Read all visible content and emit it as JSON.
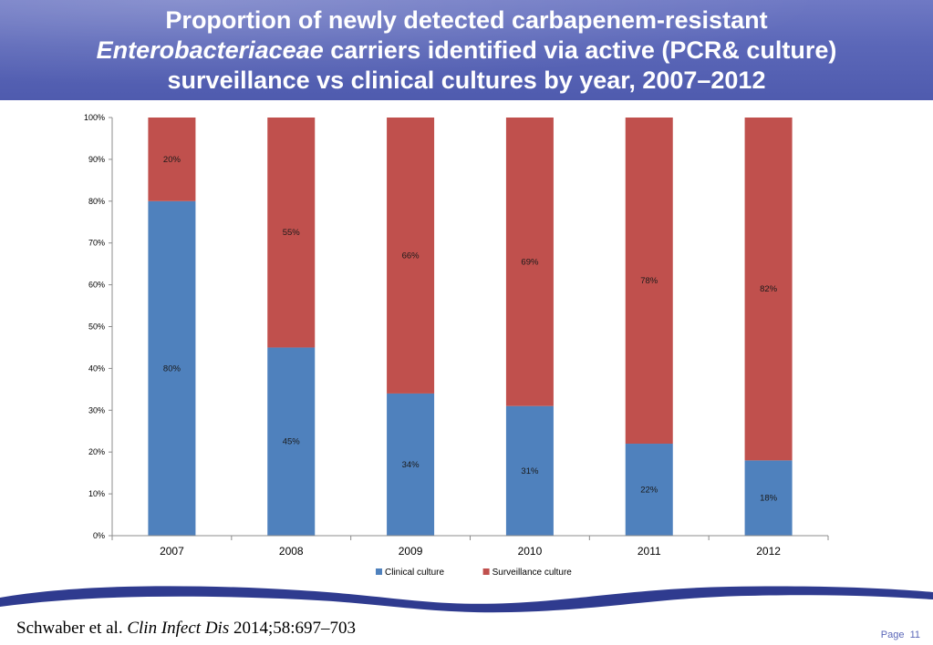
{
  "slide": {
    "title_line1": "Proportion of newly detected carbapenem-resistant",
    "title_line2_italic": "Enterobacteriaceae",
    "title_line2_rest": " carriers identified via active (PCR& culture)",
    "title_line3": "surveillance vs clinical cultures by year, 2007–2012",
    "citation_authors": "Schwaber  et al. ",
    "citation_journal": "Clin Infect Dis",
    "citation_ref": " 2014;58:697–703",
    "page_label": "Page",
    "page_number": "11"
  },
  "colors": {
    "header": "#5b67b8",
    "clinical": "#4f81bd",
    "surveillance": "#c0504d",
    "wave": "#2f3b8f"
  },
  "chart_data": {
    "type": "bar",
    "stacked": true,
    "categories": [
      "2007",
      "2008",
      "2009",
      "2010",
      "2011",
      "2012"
    ],
    "series": [
      {
        "name": "Clinical culture",
        "values": [
          80,
          45,
          34,
          31,
          22,
          18
        ],
        "labels": [
          "80%",
          "45%",
          "34%",
          "31%",
          "22%",
          "18%"
        ],
        "color": "#4f81bd"
      },
      {
        "name": "Surveillance culture",
        "values": [
          20,
          55,
          66,
          69,
          78,
          82
        ],
        "labels": [
          "20%",
          "55%",
          "66%",
          "69%",
          "78%",
          "82%"
        ],
        "color": "#c0504d"
      }
    ],
    "ylim": [
      0,
      100
    ],
    "yticks": [
      "0%",
      "10%",
      "20%",
      "30%",
      "40%",
      "50%",
      "60%",
      "70%",
      "80%",
      "90%",
      "100%"
    ],
    "grid": false,
    "legend_position": "bottom",
    "xlabel": "",
    "ylabel": ""
  }
}
